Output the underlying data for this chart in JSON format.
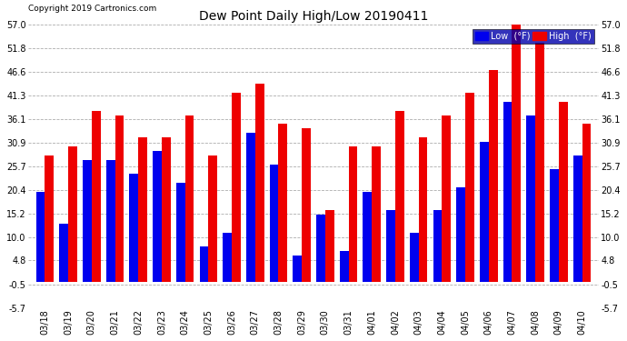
{
  "title": "Dew Point Daily High/Low 20190411",
  "copyright": "Copyright 2019 Cartronics.com",
  "dates": [
    "03/18",
    "03/19",
    "03/20",
    "03/21",
    "03/22",
    "03/23",
    "03/24",
    "03/25",
    "03/26",
    "03/27",
    "03/28",
    "03/29",
    "03/30",
    "03/31",
    "04/01",
    "04/02",
    "04/03",
    "04/04",
    "04/05",
    "04/06",
    "04/07",
    "04/08",
    "04/09",
    "04/10"
  ],
  "low": [
    20,
    13,
    27,
    27,
    24,
    29,
    22,
    8,
    11,
    33,
    26,
    6,
    15,
    7,
    20,
    16,
    11,
    16,
    21,
    31,
    40,
    37,
    25,
    28
  ],
  "high": [
    28,
    30,
    38,
    37,
    32,
    32,
    37,
    28,
    42,
    44,
    35,
    34,
    16,
    30,
    30,
    38,
    32,
    37,
    42,
    47,
    57,
    53,
    40,
    35
  ],
  "low_color": "#0000ee",
  "high_color": "#ee0000",
  "ylim_min": -5.7,
  "ylim_max": 57.0,
  "yticks": [
    -5.7,
    -0.5,
    4.8,
    10.0,
    15.2,
    20.4,
    25.7,
    30.9,
    36.1,
    41.3,
    46.6,
    51.8,
    57.0
  ],
  "background_color": "#ffffff",
  "plot_bg_color": "#ffffff",
  "grid_color": "#999999",
  "bar_width": 0.38,
  "figwidth": 6.9,
  "figheight": 3.75,
  "dpi": 100
}
